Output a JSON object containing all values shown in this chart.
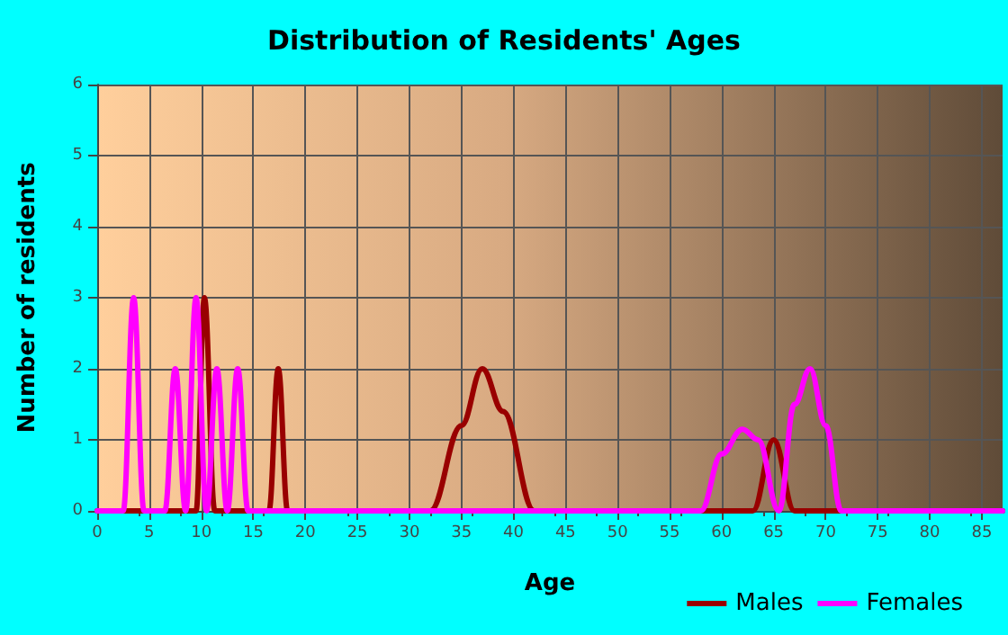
{
  "chart_data": {
    "type": "line",
    "title": "Distribution of Residents' Ages",
    "xlabel": "Age",
    "ylabel": "Number of residents",
    "xlim": [
      0,
      87
    ],
    "xticks": [
      0,
      5,
      10,
      15,
      20,
      25,
      30,
      35,
      40,
      45,
      50,
      55,
      60,
      65,
      70,
      75,
      80,
      85
    ],
    "ylim": [
      0,
      6
    ],
    "yticks": [
      0,
      1,
      2,
      3,
      4,
      5,
      6
    ],
    "grid": true,
    "legend": "bottom right",
    "marker": "none",
    "line_style": "solid",
    "series": [
      {
        "name": "Males",
        "color": "#990000",
        "x": [
          0,
          9.5,
          10.3,
          11.3,
          16.5,
          17.4,
          18.3,
          32,
          35,
          37,
          39,
          42,
          63,
          65,
          67,
          87
        ],
        "values": [
          0,
          0,
          3,
          0,
          0,
          2,
          0,
          0,
          1.2,
          2,
          1.4,
          0,
          0,
          1,
          0,
          0
        ]
      },
      {
        "name": "Females",
        "color": "#ff00ff",
        "x": [
          0,
          2.5,
          3.5,
          4.5,
          6.5,
          7.5,
          8.5,
          9.5,
          10.5,
          11.5,
          12.5,
          13.5,
          14.5,
          58,
          60,
          62,
          63.5,
          65.5,
          67,
          68.5,
          70,
          71.5,
          87
        ],
        "values": [
          0,
          0,
          3,
          0,
          0,
          2,
          0,
          3,
          0,
          2,
          0,
          2,
          0,
          0,
          0.8,
          1.15,
          1,
          0,
          1.5,
          2,
          1.2,
          0,
          0
        ]
      }
    ]
  }
}
